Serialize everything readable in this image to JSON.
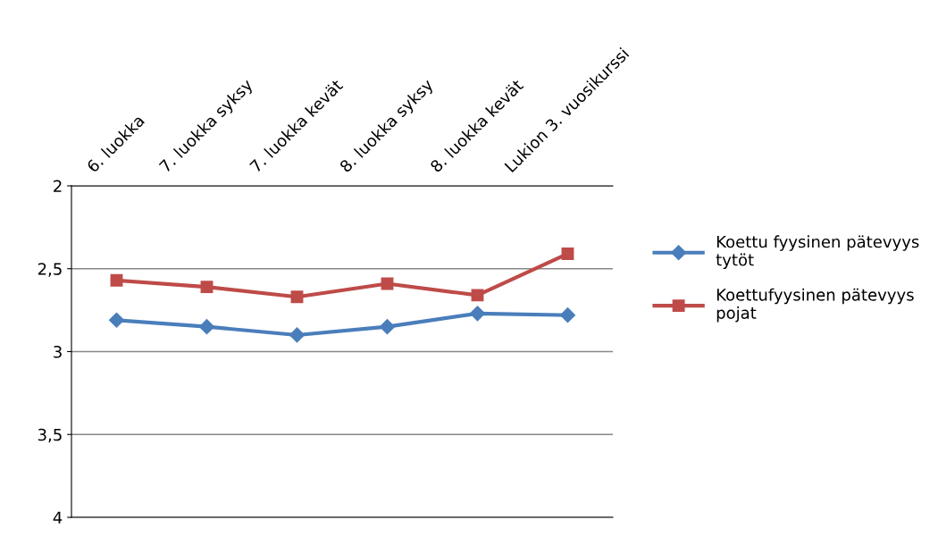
{
  "chart_data": {
    "type": "line",
    "categories": [
      "6. luokka",
      "7. luokka syksy",
      "7. luokka kevät",
      "8. luokka syksy",
      "8. luokka kevät",
      "Lukion 3. vuosikurssi"
    ],
    "series": [
      {
        "name": "Koettu fyysinen pätevyys\ntytöt",
        "color": "#4a7ebb",
        "marker": "diamond",
        "values": [
          2.81,
          2.85,
          2.9,
          2.85,
          2.77,
          2.78
        ]
      },
      {
        "name": "Koettufyysinen pätevyys\npojat",
        "color": "#be4b48",
        "marker": "square",
        "values": [
          2.57,
          2.61,
          2.67,
          2.59,
          2.66,
          2.41
        ]
      }
    ],
    "ylim": [
      4,
      2
    ],
    "yticks": [
      2,
      {
        "value": 2.5,
        "label": "2,5"
      },
      3,
      {
        "value": 3.5,
        "label": "3,5"
      },
      4
    ],
    "grid": "y",
    "legend": "right",
    "line_style": "solid"
  }
}
